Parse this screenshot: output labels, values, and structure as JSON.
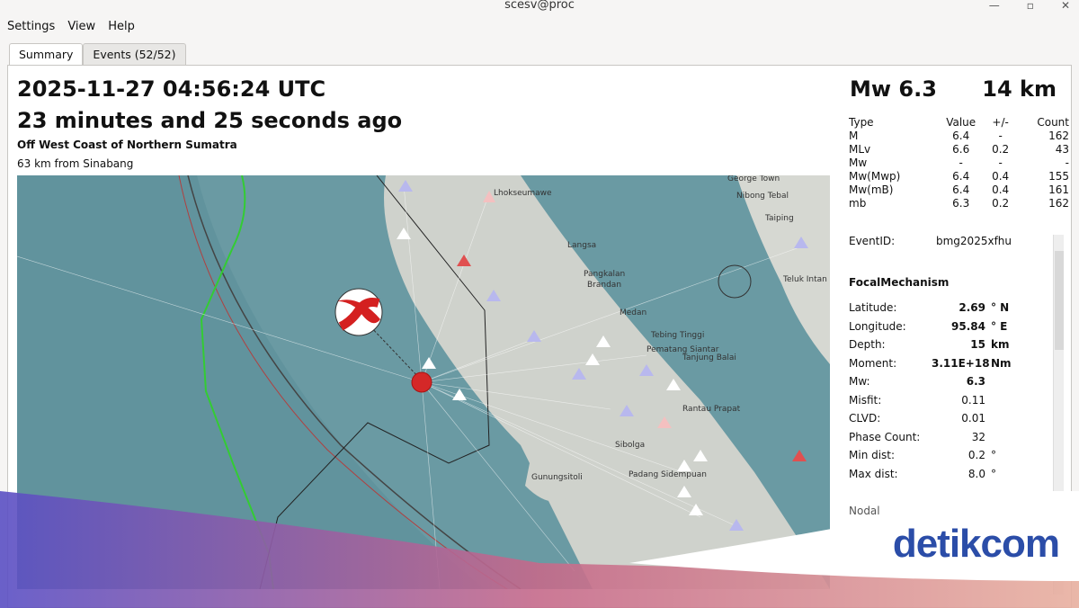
{
  "window": {
    "title": "scesv@proc"
  },
  "menu": [
    "Settings",
    "View",
    "Help"
  ],
  "tabs": [
    "Summary",
    "Events (52/52)"
  ],
  "summary": {
    "time": "2025-11-27 04:56:24 UTC",
    "ago": "23 minutes and 25 seconds ago",
    "region": "Off West Coast of Northern Sumatra",
    "distance": "63 km from Sinabang",
    "magnitude": "Mw 6.3",
    "depth": "14 km"
  },
  "magnitudes": {
    "headers": [
      "Type",
      "Value",
      "+/-",
      "Count"
    ],
    "rows": [
      [
        "M",
        "6.4",
        "-",
        "162"
      ],
      [
        "MLv",
        "6.6",
        "0.2",
        "43"
      ],
      [
        "Mw",
        "-",
        "-",
        "-"
      ],
      [
        "Mw(Mwp)",
        "6.4",
        "0.4",
        "155"
      ],
      [
        "Mw(mB)",
        "6.4",
        "0.4",
        "161"
      ],
      [
        "mb",
        "6.3",
        "0.2",
        "162"
      ]
    ]
  },
  "event": {
    "label": "EventID:",
    "id": "bmg2025xfhu"
  },
  "focal": {
    "title": "FocalMechanism",
    "rows": [
      {
        "k": "Latitude:",
        "v": "2.69",
        "u": "° N",
        "bold": true
      },
      {
        "k": "Longitude:",
        "v": "95.84",
        "u": "° E",
        "bold": true
      },
      {
        "k": "Depth:",
        "v": "15",
        "u": "km",
        "bold": true
      },
      {
        "k": "Moment:",
        "v": "3.11E+18",
        "u": "Nm",
        "bold": true
      },
      {
        "k": "Mw:",
        "v": "6.3",
        "u": "",
        "bold": true
      },
      {
        "k": "Misfit:",
        "v": "0.11",
        "u": ""
      },
      {
        "k": "CLVD:",
        "v": "0.01",
        "u": ""
      },
      {
        "k": "Phase Count:",
        "v": "32",
        "u": ""
      },
      {
        "k": "Min dist:",
        "v": "0.2",
        "u": "°"
      },
      {
        "k": "Max dist:",
        "v": "8.0",
        "u": "°"
      }
    ],
    "nodal": "Nodal"
  },
  "map": {
    "places": [
      "Lhokseumawe",
      "Langsa",
      "Pangkalan",
      "Brandan",
      "Medan",
      "Tebing Tinggi",
      "Pematang Siantar",
      "Tanjung Balai",
      "Rantau Prapat",
      "Sibolga",
      "Padang Sidempuan",
      "Gunungsitoli",
      "George Town",
      "Nibong Tebal",
      "Taiping",
      "Teluk Intan"
    ]
  },
  "watermark": "detikcom"
}
